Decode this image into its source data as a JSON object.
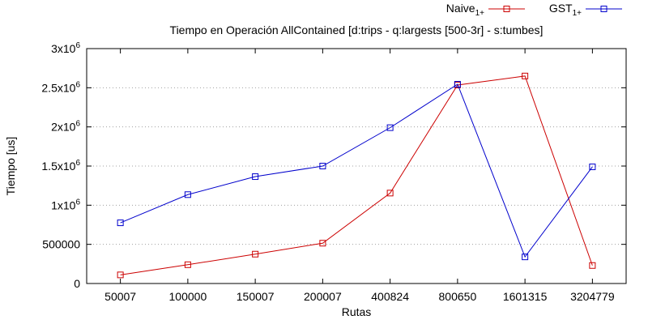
{
  "chart_data": {
    "type": "line",
    "title": "Tiempo en Operación AllContained [d:trips - q:largests [500-3r] - s:tumbes]",
    "xlabel": "Rutas",
    "ylabel": "Tiempo [us]",
    "categories": [
      "50007",
      "100000",
      "150007",
      "200007",
      "400824",
      "800650",
      "1601315",
      "3204779"
    ],
    "ylim": [
      0,
      3000000
    ],
    "y_ticks": [
      {
        "value": 0,
        "base": "0",
        "exp": ""
      },
      {
        "value": 500000,
        "base": "500000",
        "exp": ""
      },
      {
        "value": 1000000,
        "base": "1x10",
        "exp": "6"
      },
      {
        "value": 1500000,
        "base": "1.5x10",
        "exp": "6"
      },
      {
        "value": 2000000,
        "base": "2x10",
        "exp": "6"
      },
      {
        "value": 2500000,
        "base": "2.5x10",
        "exp": "6"
      },
      {
        "value": 3000000,
        "base": "3x10",
        "exp": "6"
      }
    ],
    "grid": "horizontal dotted",
    "legend_position": "top-right",
    "series": [
      {
        "name": "Naive",
        "name_sub": "1+",
        "color": "#cc0000",
        "values": [
          110000,
          240000,
          375000,
          515000,
          1155000,
          2535000,
          2650000,
          230000
        ]
      },
      {
        "name": "GST",
        "name_sub": "1+",
        "color": "#0000cc",
        "values": [
          775000,
          1135000,
          1365000,
          1500000,
          1990000,
          2545000,
          340000,
          1490000
        ]
      }
    ]
  }
}
